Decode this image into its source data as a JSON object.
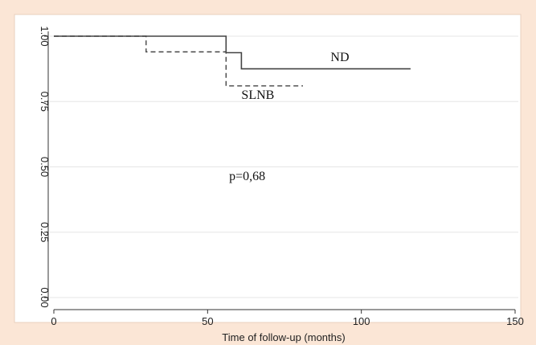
{
  "chart_data": {
    "type": "line",
    "title": "",
    "xlabel": "Time of follow-up (months)",
    "ylabel": "",
    "xlim": [
      0,
      150
    ],
    "ylim": [
      0,
      1
    ],
    "x_ticks": [
      {
        "value": 0,
        "label": "0"
      },
      {
        "value": 50,
        "label": "50"
      },
      {
        "value": 100,
        "label": "100"
      },
      {
        "value": 150,
        "label": "150"
      }
    ],
    "y_ticks": [
      {
        "value": 0,
        "label": "0.00"
      },
      {
        "value": 0.25,
        "label": "0.25"
      },
      {
        "value": 0.5,
        "label": "0.50"
      },
      {
        "value": 0.75,
        "label": "0.75"
      },
      {
        "value": 1,
        "label": "1.00"
      }
    ],
    "grid": true,
    "series": [
      {
        "name": "ND",
        "style": "solid",
        "color": "#444444",
        "points": [
          [
            0,
            1.0
          ],
          [
            56,
            1.0
          ],
          [
            56,
            0.937
          ],
          [
            61,
            0.937
          ],
          [
            61,
            0.875
          ],
          [
            116,
            0.875
          ]
        ]
      },
      {
        "name": "SLNB",
        "style": "dashed",
        "color": "#444444",
        "points": [
          [
            0,
            1.0
          ],
          [
            30,
            1.0
          ],
          [
            30,
            0.94
          ],
          [
            56,
            0.94
          ],
          [
            56,
            0.81
          ],
          [
            81,
            0.81
          ]
        ]
      }
    ],
    "annotations": [
      {
        "text": "ND",
        "x": 90,
        "y": 0.905
      },
      {
        "text": "SLNB",
        "x": 61,
        "y": 0.76
      },
      {
        "text": "p=0,68",
        "x": 57,
        "y": 0.45
      }
    ]
  }
}
